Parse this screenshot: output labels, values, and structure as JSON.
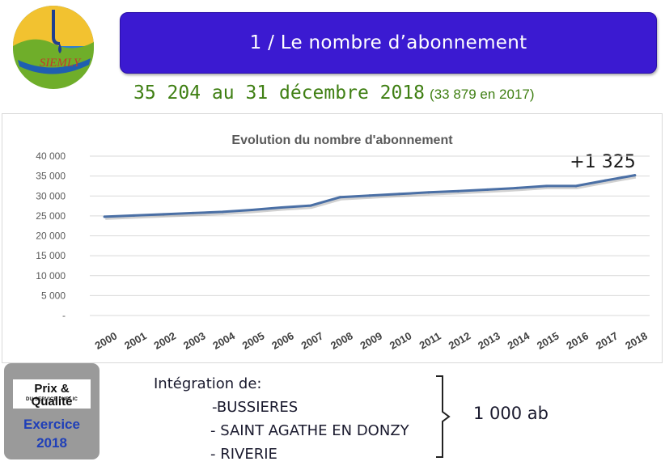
{
  "header": {
    "logo_text": "SIEMLY",
    "title": "1 / Le nombre d’abonnement",
    "headline_main": "35 204 au 31 décembre 2018",
    "headline_sub": "(33 879 en  2017)"
  },
  "colors": {
    "title_bg": "#3b1ad1",
    "headline": "#3f7f13",
    "series_line": "#4a6fa5",
    "gridline": "#d9d9d9",
    "badge_bg": "#9a9a9a",
    "badge_text": "#1f3fb8"
  },
  "chart_data": {
    "type": "line",
    "title": "Evolution du nombre d'abonnement",
    "xlabel": "",
    "ylabel": "",
    "categories": [
      "2000",
      "2001",
      "2002",
      "2003",
      "2004",
      "2005",
      "2006",
      "2007",
      "2008",
      "2009",
      "2010",
      "2011",
      "2012",
      "2013",
      "2014",
      "2015",
      "2016",
      "2017",
      "2018"
    ],
    "series": [
      {
        "values": [
          24800,
          25100,
          25400,
          25700,
          26000,
          26500,
          27100,
          27600,
          29700,
          30100,
          30500,
          30900,
          31200,
          31600,
          32000,
          32500,
          32500,
          33879,
          35204
        ]
      }
    ],
    "ylim": [
      0,
      40000
    ],
    "yticks": [
      0,
      5000,
      10000,
      15000,
      20000,
      25000,
      30000,
      35000,
      40000
    ],
    "ytick_labels": [
      "-",
      "5 000",
      "10 000",
      "15 000",
      "20 000",
      "25 000",
      "30 000",
      "35 000",
      "40 000"
    ],
    "grid": true,
    "legend": "none",
    "annotation": "+1 325"
  },
  "badge": {
    "brand": "Prix & Qualité",
    "subtitle": "DU SERVICE PUBLIC",
    "exercice": "Exercice",
    "year": "2018"
  },
  "integration": {
    "heading": "Intégration de:",
    "items": [
      "-BUSSIERES",
      "- SAINT AGATHE EN DONZY",
      "- RIVERIE"
    ],
    "total": "1 000 ab"
  }
}
